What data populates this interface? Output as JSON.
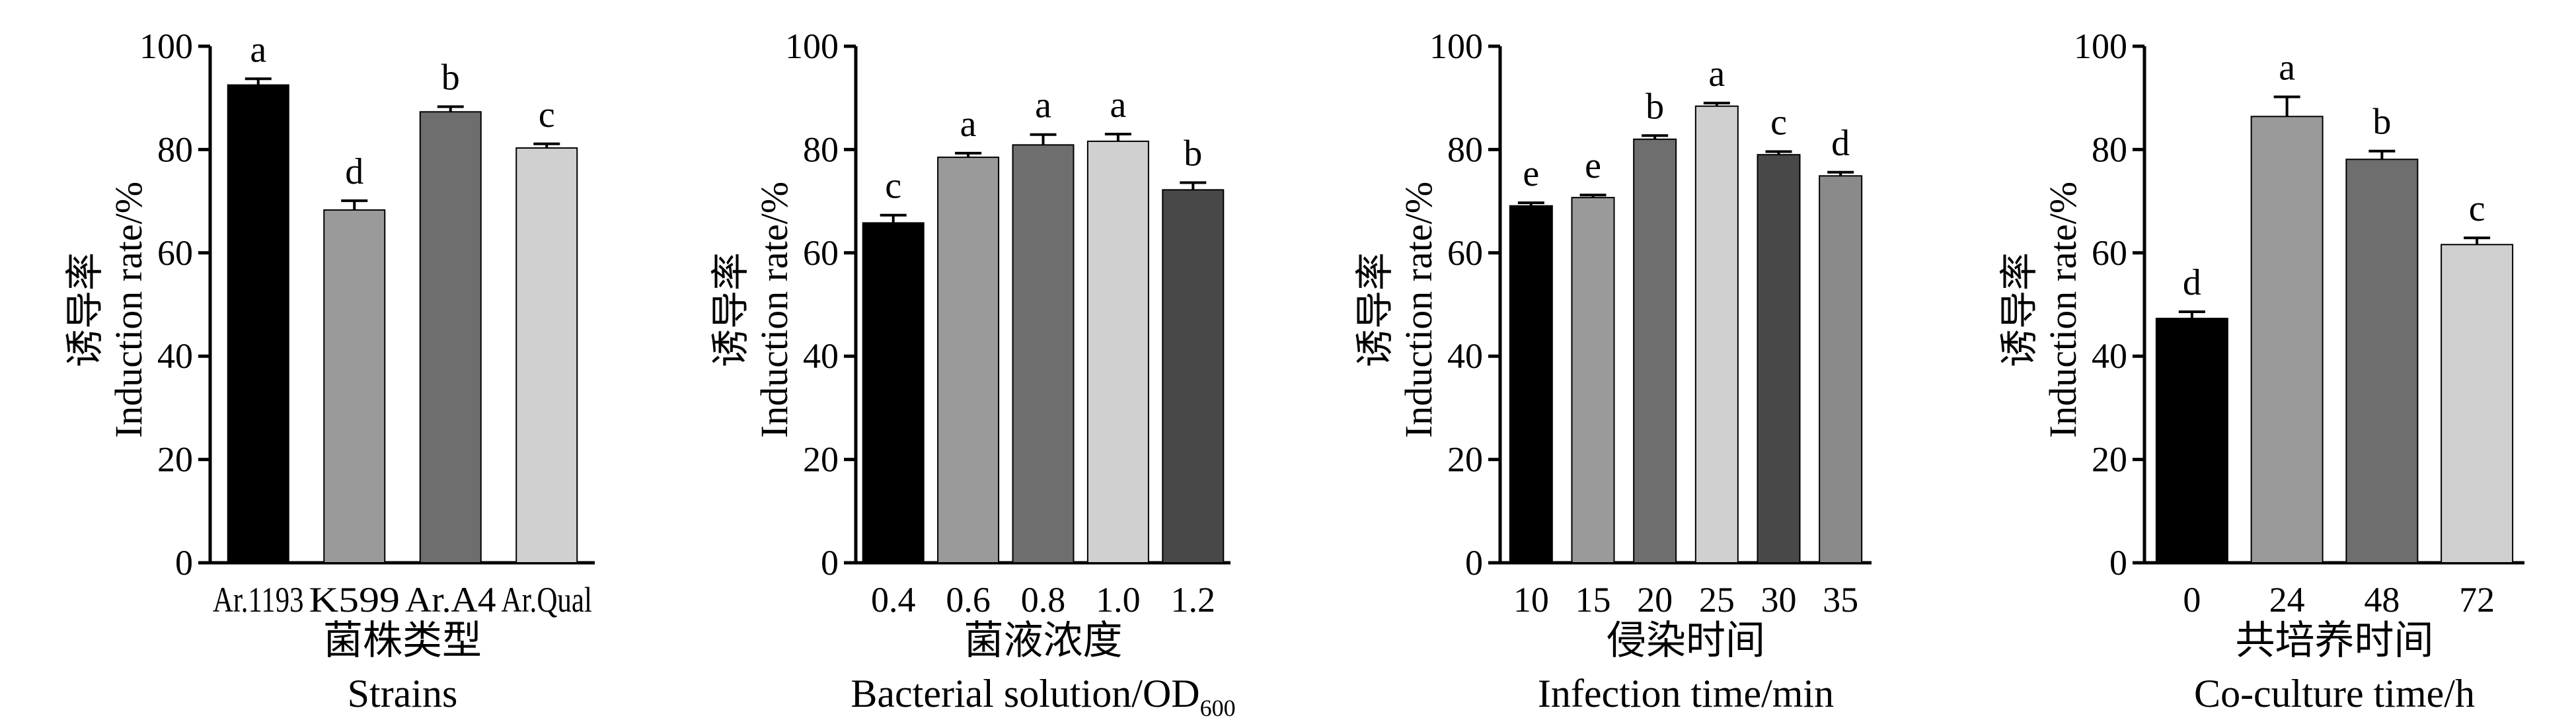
{
  "chart_data": [
    {
      "type": "bar",
      "ylabel_cn": "诱导率",
      "ylabel_en": "Induction rate/%",
      "xlabel_cn": "菌株类型",
      "xlabel_en": "Strains",
      "xlabel_en_sub": "",
      "ylim": [
        0,
        100
      ],
      "yticks": [
        0,
        20,
        40,
        60,
        80,
        100
      ],
      "categories": [
        "Ar.1193",
        "K599",
        "Ar.A4",
        "Ar.Qual"
      ],
      "values": [
        92.5,
        68.3,
        87.3,
        80.3
      ],
      "errors": [
        1.2,
        1.8,
        1.0,
        0.8
      ],
      "letters": [
        "a",
        "d",
        "b",
        "c"
      ],
      "colors": [
        "#000000",
        "#9a9a9a",
        "#6e6e6e",
        "#d0d0d0"
      ]
    },
    {
      "type": "bar",
      "ylabel_cn": "诱导率",
      "ylabel_en": "Induction rate/%",
      "xlabel_cn": "菌液浓度",
      "xlabel_en": "Bacterial solution/OD",
      "xlabel_en_sub": "600",
      "ylim": [
        0,
        100
      ],
      "yticks": [
        0,
        20,
        40,
        60,
        80,
        100
      ],
      "categories": [
        "0.4",
        "0.6",
        "0.8",
        "1.0",
        "1.2"
      ],
      "values": [
        65.8,
        78.5,
        80.9,
        81.6,
        72.2
      ],
      "errors": [
        1.5,
        0.8,
        2.0,
        1.4,
        1.4
      ],
      "letters": [
        "c",
        "a",
        "a",
        "a",
        "b"
      ],
      "colors": [
        "#000000",
        "#9a9a9a",
        "#6e6e6e",
        "#d0d0d0",
        "#484848"
      ]
    },
    {
      "type": "bar",
      "ylabel_cn": "诱导率",
      "ylabel_en": "Induction rate/%",
      "xlabel_cn": "侵染时间",
      "xlabel_en": "Infection time/min",
      "xlabel_en_sub": "",
      "ylim": [
        0,
        100
      ],
      "yticks": [
        0,
        20,
        40,
        60,
        80,
        100
      ],
      "categories": [
        "10",
        "15",
        "20",
        "25",
        "30",
        "35"
      ],
      "values": [
        69.1,
        70.7,
        82.0,
        88.4,
        79.0,
        74.9
      ],
      "errors": [
        0.6,
        0.5,
        0.7,
        0.6,
        0.6,
        0.7
      ],
      "letters": [
        "e",
        "e",
        "b",
        "a",
        "c",
        "d"
      ],
      "colors": [
        "#000000",
        "#9a9a9a",
        "#6e6e6e",
        "#d0d0d0",
        "#484848",
        "#8a8a8a"
      ]
    },
    {
      "type": "bar",
      "ylabel_cn": "诱导率",
      "ylabel_en": "Induction rate/%",
      "xlabel_cn": "共培养时间",
      "xlabel_en": "Co-culture time/h",
      "xlabel_en_sub": "",
      "ylim": [
        0,
        100
      ],
      "yticks": [
        0,
        20,
        40,
        60,
        80,
        100
      ],
      "categories": [
        "0",
        "24",
        "48",
        "72"
      ],
      "values": [
        47.3,
        86.4,
        78.1,
        61.6
      ],
      "errors": [
        1.3,
        3.8,
        1.6,
        1.3
      ],
      "letters": [
        "d",
        "a",
        "b",
        "c"
      ],
      "colors": [
        "#000000",
        "#9a9a9a",
        "#6e6e6e",
        "#d0d0d0"
      ]
    }
  ]
}
